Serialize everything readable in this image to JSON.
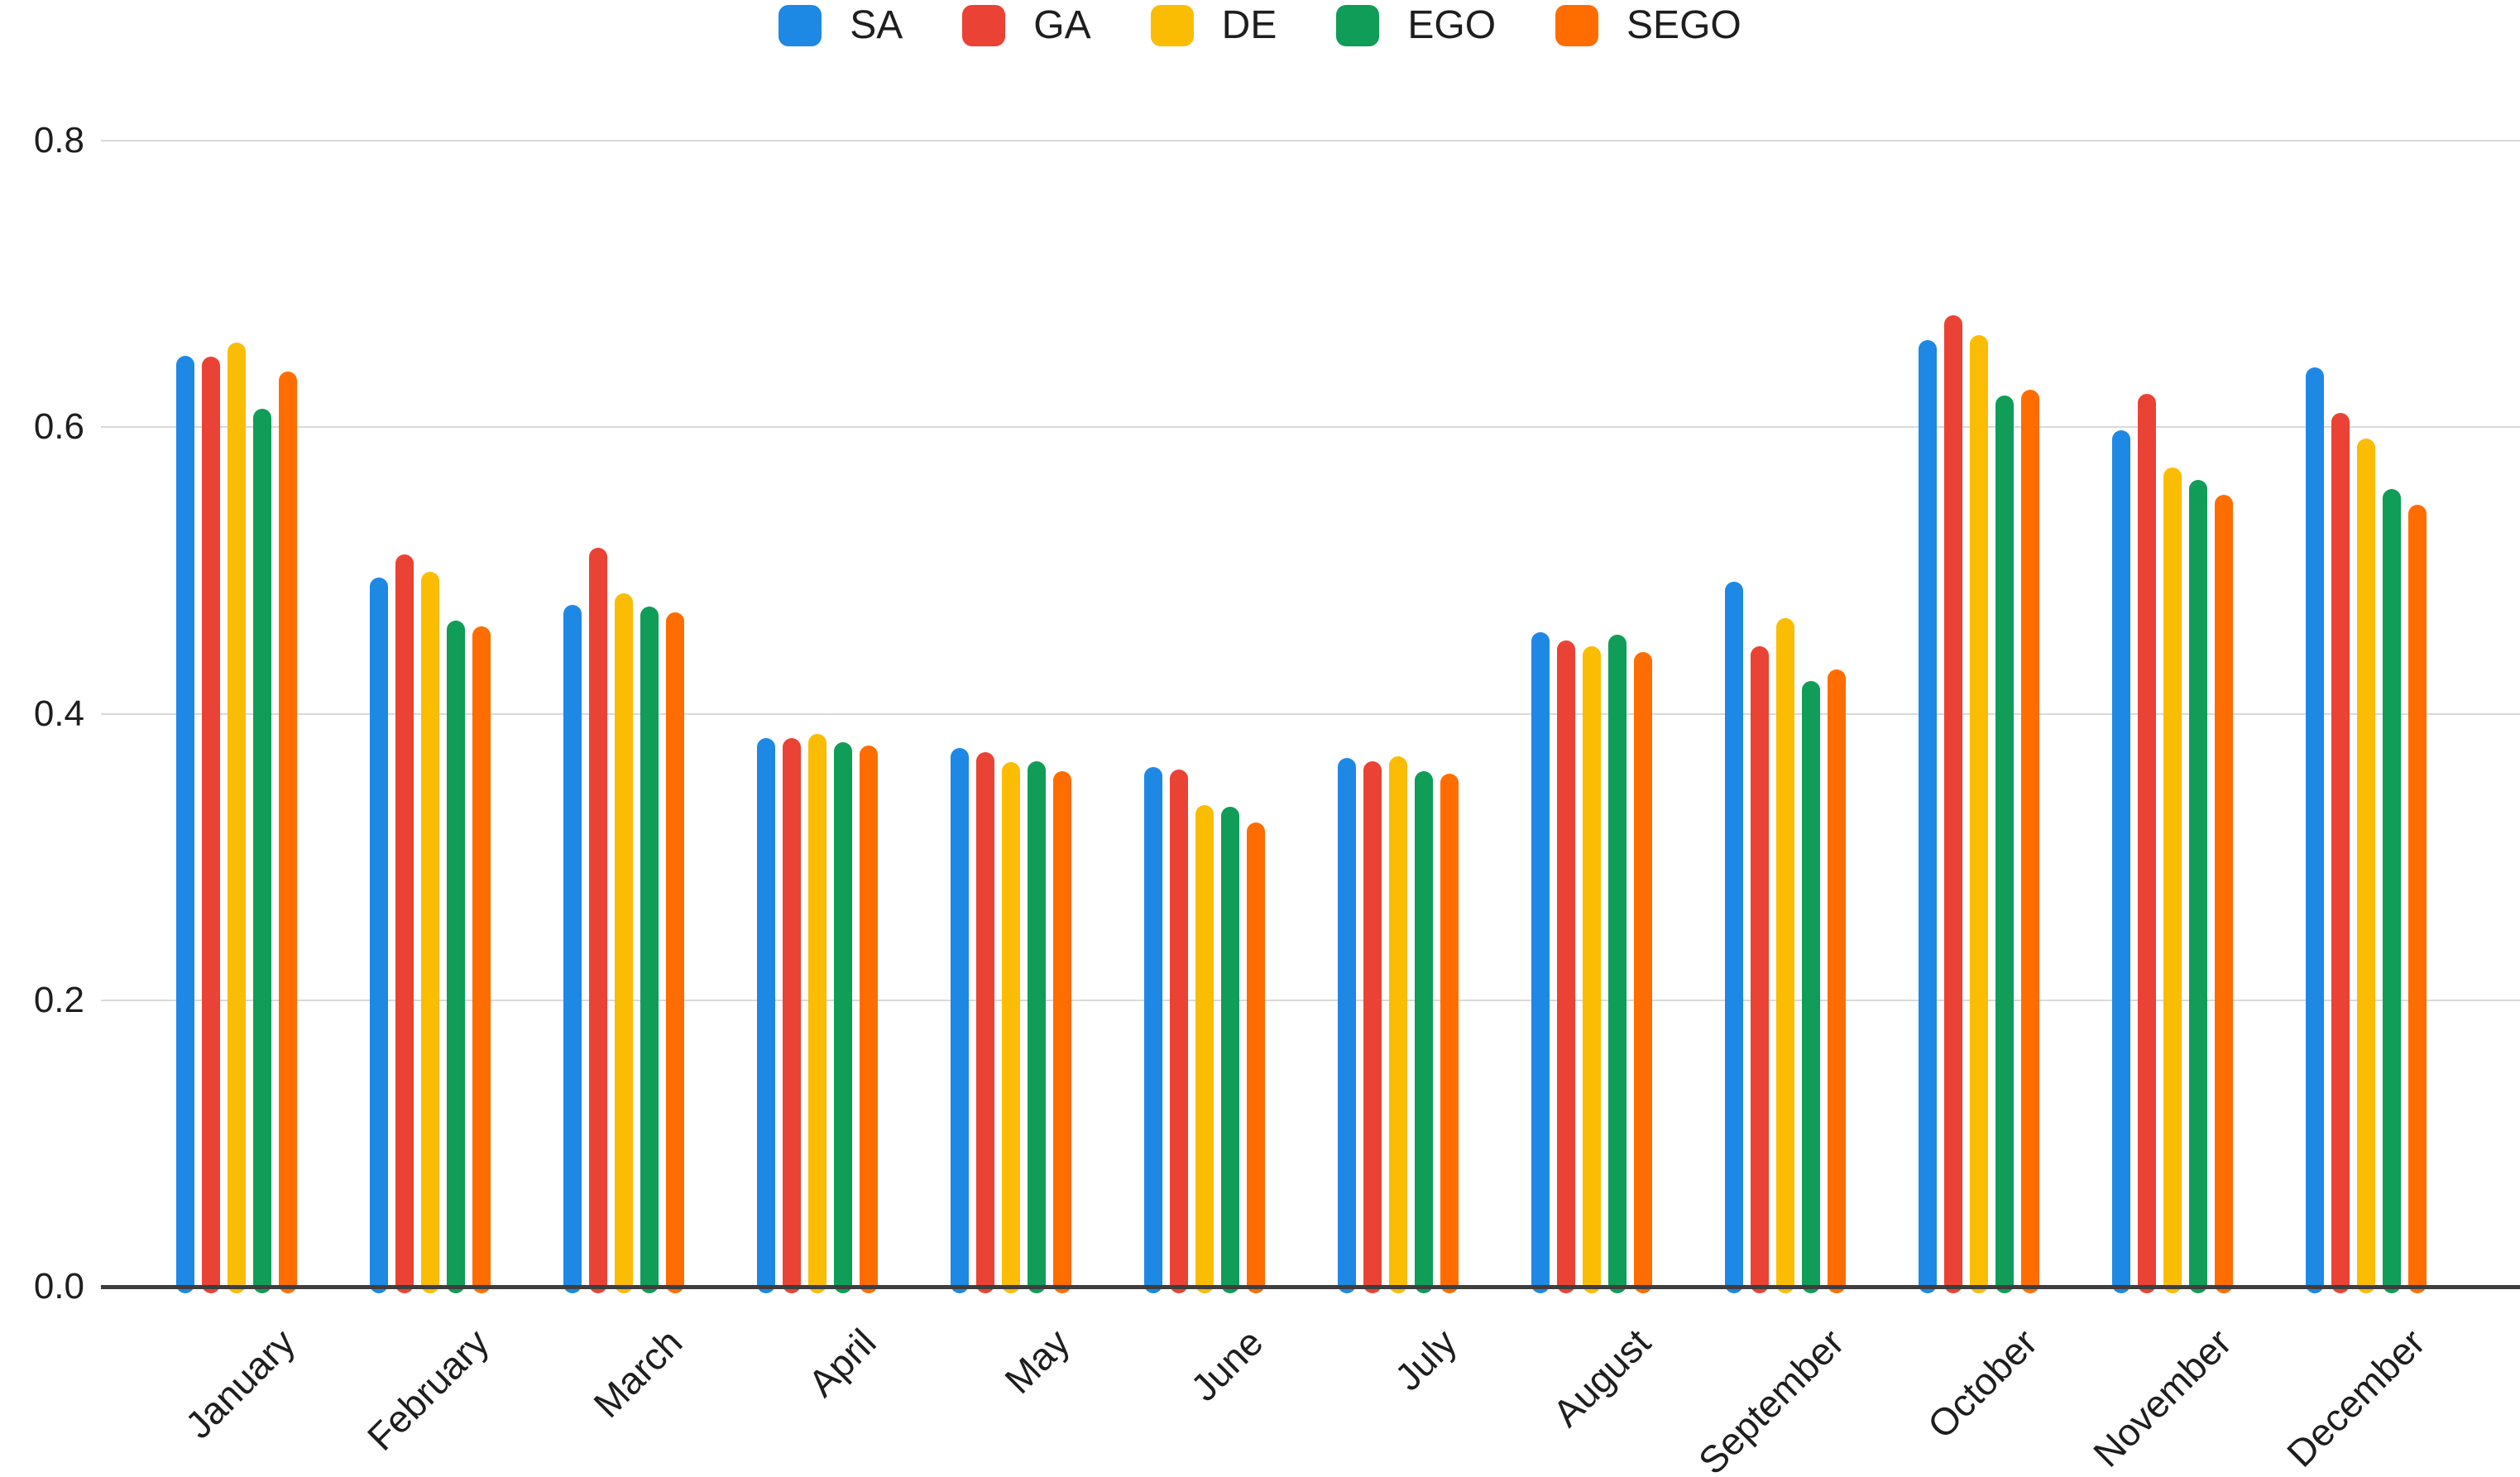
{
  "chart_data": {
    "type": "bar",
    "title": "",
    "categories": [
      "January",
      "February",
      "March",
      "April",
      "May",
      "June",
      "July",
      "August",
      "September",
      "October",
      "November",
      "December"
    ],
    "series": [
      {
        "name": "SA",
        "color": "#1e88e5",
        "values": [
          0.65,
          0.495,
          0.476,
          0.383,
          0.376,
          0.363,
          0.369,
          0.457,
          0.492,
          0.661,
          0.598,
          0.642
        ]
      },
      {
        "name": "GA",
        "color": "#ea4335",
        "values": [
          0.649,
          0.511,
          0.516,
          0.383,
          0.373,
          0.361,
          0.367,
          0.451,
          0.447,
          0.678,
          0.623,
          0.61
        ]
      },
      {
        "name": "DE",
        "color": "#fbbc04",
        "values": [
          0.659,
          0.499,
          0.484,
          0.386,
          0.366,
          0.336,
          0.37,
          0.447,
          0.467,
          0.664,
          0.572,
          0.592
        ]
      },
      {
        "name": "EGO",
        "color": "#0f9d58",
        "values": [
          0.613,
          0.465,
          0.475,
          0.38,
          0.367,
          0.335,
          0.36,
          0.455,
          0.423,
          0.622,
          0.563,
          0.557
        ]
      },
      {
        "name": "SEGO",
        "color": "#ff6d01",
        "values": [
          0.639,
          0.461,
          0.471,
          0.378,
          0.36,
          0.324,
          0.358,
          0.443,
          0.431,
          0.626,
          0.553,
          0.546
        ]
      }
    ],
    "ylim": [
      0,
      0.8
    ],
    "y_tick_labels": [
      "0.0",
      "0.2",
      "0.4",
      "0.6",
      "0.8"
    ],
    "y_tick_values": [
      0.0,
      0.2,
      0.4,
      0.6,
      0.8
    ],
    "grid": "horizontal gridlines on",
    "legend_position": "top-center",
    "bar_style": "rounded-stadium",
    "xlabel_rotation_deg": -45
  },
  "colors": {
    "background": "#ffffff",
    "gridline": "#d9d9d9",
    "axis_line": "#3e3e3e",
    "text": "#1e1e1e"
  }
}
